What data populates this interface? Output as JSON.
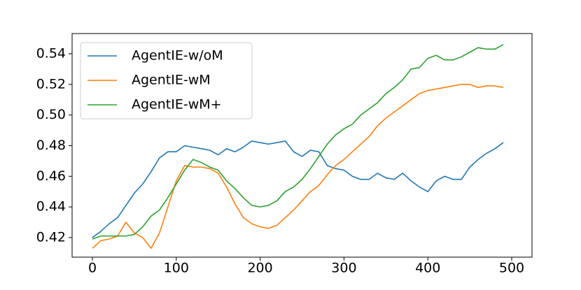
{
  "chart_data": {
    "type": "line",
    "x": [
      0,
      10,
      20,
      30,
      40,
      50,
      60,
      70,
      80,
      90,
      100,
      110,
      120,
      130,
      140,
      150,
      160,
      170,
      180,
      190,
      200,
      210,
      220,
      230,
      240,
      250,
      260,
      270,
      280,
      290,
      300,
      310,
      320,
      330,
      340,
      350,
      360,
      370,
      380,
      390,
      400,
      410,
      420,
      430,
      440,
      450,
      460,
      470,
      480,
      490
    ],
    "series": [
      {
        "name": "AgentIE-w/oM",
        "color": "#1f77b4",
        "values": [
          0.42,
          0.424,
          0.429,
          0.433,
          0.441,
          0.449,
          0.455,
          0.463,
          0.472,
          0.476,
          0.476,
          0.48,
          0.479,
          0.478,
          0.477,
          0.474,
          0.478,
          0.476,
          0.479,
          0.483,
          0.482,
          0.481,
          0.482,
          0.483,
          0.476,
          0.473,
          0.477,
          0.476,
          0.467,
          0.465,
          0.464,
          0.46,
          0.458,
          0.458,
          0.462,
          0.459,
          0.458,
          0.462,
          0.457,
          0.453,
          0.45,
          0.457,
          0.46,
          0.458,
          0.458,
          0.466,
          0.471,
          0.475,
          0.478,
          0.482
        ]
      },
      {
        "name": "AgentIE-wM",
        "color": "#ff7f0e",
        "values": [
          0.413,
          0.418,
          0.419,
          0.421,
          0.43,
          0.423,
          0.42,
          0.413,
          0.423,
          0.44,
          0.457,
          0.467,
          0.466,
          0.466,
          0.465,
          0.462,
          0.453,
          0.442,
          0.433,
          0.429,
          0.427,
          0.426,
          0.428,
          0.433,
          0.438,
          0.444,
          0.45,
          0.454,
          0.461,
          0.467,
          0.471,
          0.476,
          0.481,
          0.486,
          0.493,
          0.498,
          0.502,
          0.506,
          0.51,
          0.514,
          0.516,
          0.517,
          0.518,
          0.519,
          0.52,
          0.52,
          0.518,
          0.519,
          0.519,
          0.518
        ]
      },
      {
        "name": "AgentIE-wM+",
        "color": "#2ca02c",
        "values": [
          0.419,
          0.421,
          0.421,
          0.421,
          0.421,
          0.422,
          0.427,
          0.434,
          0.438,
          0.446,
          0.455,
          0.464,
          0.471,
          0.469,
          0.466,
          0.464,
          0.457,
          0.452,
          0.446,
          0.441,
          0.44,
          0.441,
          0.444,
          0.45,
          0.453,
          0.458,
          0.465,
          0.473,
          0.481,
          0.487,
          0.491,
          0.494,
          0.5,
          0.504,
          0.508,
          0.514,
          0.518,
          0.523,
          0.53,
          0.531,
          0.537,
          0.539,
          0.536,
          0.536,
          0.538,
          0.541,
          0.544,
          0.543,
          0.543,
          0.546
        ]
      }
    ],
    "xlim": [
      -24.2,
      524.2
    ],
    "ylim": [
      0.4072,
      0.5532
    ],
    "xticks": [
      0,
      100,
      200,
      300,
      400,
      500
    ],
    "yticks": [
      0.42,
      0.44,
      0.46,
      0.48,
      {
        "value": 0.5,
        "label": "0.50"
      },
      0.52,
      0.54
    ],
    "legend": "upper left"
  }
}
